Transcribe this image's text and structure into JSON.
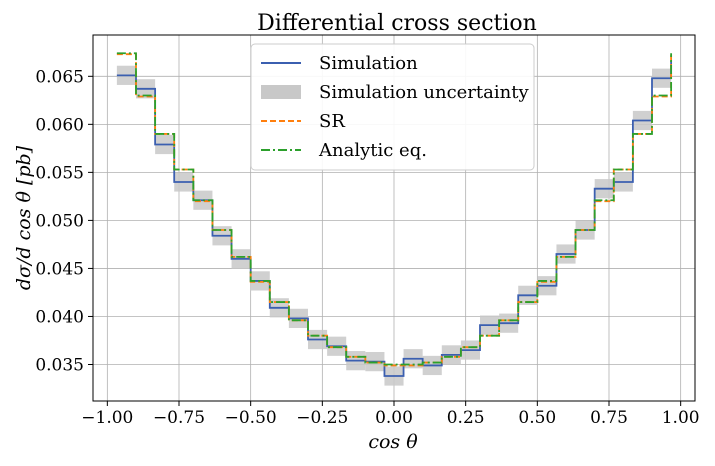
{
  "chart_data": {
    "type": "line",
    "title": "Differential cross section",
    "xlabel": "cos θ",
    "ylabel": "dσ/d cos θ [pb]",
    "xlim": [
      -1.05,
      1.05
    ],
    "ylim": [
      0.0312,
      0.0693
    ],
    "xticks": [
      -1.0,
      -0.75,
      -0.5,
      -0.25,
      0.0,
      0.25,
      0.5,
      0.75,
      1.0
    ],
    "xtick_labels": [
      "−1.00",
      "−0.75",
      "−0.50",
      "−0.25",
      "0.00",
      "0.25",
      "0.50",
      "0.75",
      "1.00"
    ],
    "yticks": [
      0.035,
      0.04,
      0.045,
      0.05,
      0.055,
      0.06,
      0.065
    ],
    "ytick_labels": [
      "0.035",
      "0.040",
      "0.045",
      "0.050",
      "0.055",
      "0.060",
      "0.065"
    ],
    "grid": true,
    "legend_position": "upper-center",
    "bin_edges": [
      -0.9667,
      -0.9,
      -0.8333,
      -0.7667,
      -0.7,
      -0.6333,
      -0.5667,
      -0.5,
      -0.4333,
      -0.3667,
      -0.3,
      -0.2333,
      -0.1667,
      -0.1,
      -0.0333,
      0.0333,
      0.1,
      0.1667,
      0.2333,
      0.3,
      0.3667,
      0.4333,
      0.5,
      0.5667,
      0.6333,
      0.7,
      0.7667,
      0.8333,
      0.9,
      0.9667
    ],
    "series": [
      {
        "name": "Simulation",
        "style": "solid",
        "color": "#3b5fb0",
        "values": [
          0.0651,
          0.0637,
          0.0579,
          0.054,
          0.0521,
          0.0484,
          0.046,
          0.0437,
          0.0409,
          0.0398,
          0.0376,
          0.0369,
          0.0354,
          0.0353,
          0.0338,
          0.0356,
          0.0349,
          0.036,
          0.0365,
          0.0391,
          0.0393,
          0.0422,
          0.0432,
          0.0465,
          0.049,
          0.0533,
          0.054,
          0.0604,
          0.0648,
          0.0666
        ]
      },
      {
        "name": "Simulation uncertainty",
        "style": "band",
        "color": "#c8c8c8",
        "half_width": 0.001
      },
      {
        "name": "SR",
        "style": "dashed",
        "color": "#ff7f0e",
        "values": [
          0.0673,
          0.0629,
          0.059,
          0.0553,
          0.052,
          0.049,
          0.0462,
          0.0436,
          0.0415,
          0.0396,
          0.038,
          0.0368,
          0.0358,
          0.0352,
          0.0349,
          0.0349,
          0.0352,
          0.0358,
          0.0368,
          0.038,
          0.0396,
          0.0415,
          0.0436,
          0.0462,
          0.049,
          0.052,
          0.0553,
          0.059,
          0.0629,
          0.0673
        ]
      },
      {
        "name": "Analytic eq.",
        "style": "dashdot",
        "color": "#2ca02c",
        "values": [
          0.0674,
          0.063,
          0.059,
          0.0553,
          0.0521,
          0.049,
          0.0462,
          0.0437,
          0.0415,
          0.0396,
          0.038,
          0.0368,
          0.0358,
          0.0352,
          0.035,
          0.035,
          0.0352,
          0.0358,
          0.0368,
          0.038,
          0.0396,
          0.0415,
          0.0437,
          0.0462,
          0.049,
          0.0521,
          0.0553,
          0.059,
          0.063,
          0.0674
        ]
      }
    ]
  }
}
